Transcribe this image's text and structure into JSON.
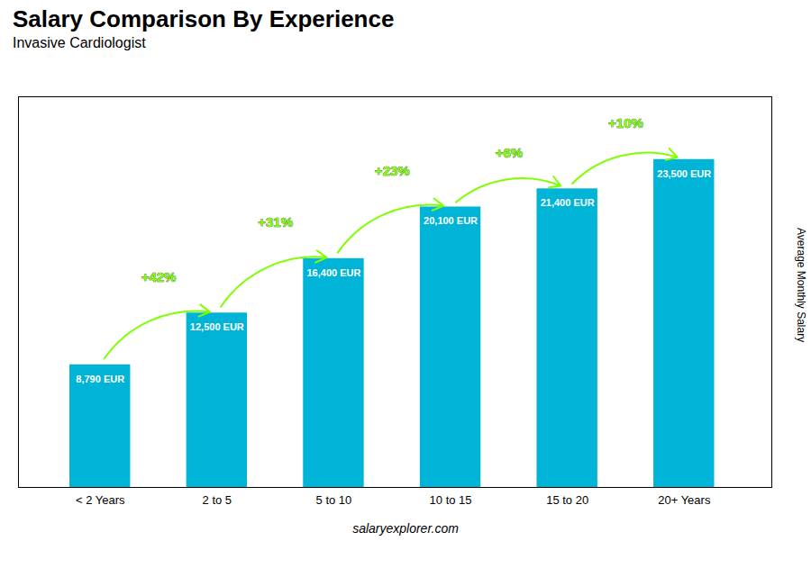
{
  "chart_data": {
    "type": "bar",
    "title": "Salary Comparison By Experience",
    "subtitle": "Invasive Cardiologist",
    "categories": [
      "< 2 Years",
      "2 to 5",
      "5 to 10",
      "10 to 15",
      "15 to 20",
      "20+ Years"
    ],
    "values": [
      8790,
      12500,
      16400,
      20100,
      21400,
      23500
    ],
    "value_labels": [
      "8,790 EUR",
      "12,500 EUR",
      "16,400 EUR",
      "20,100 EUR",
      "21,400 EUR",
      "23,500 EUR"
    ],
    "data_labels": true,
    "color": "#00b4d8",
    "ylabel": "Average Monthly Salary",
    "ylim": [
      0,
      28000
    ],
    "tick_labels": "x",
    "grid": false,
    "annotations": [
      {
        "text": "+42%",
        "color": "#7fff00"
      },
      {
        "text": "+31%",
        "color": "#7fff00"
      },
      {
        "text": "+23%",
        "color": "#7fff00"
      },
      {
        "text": "+6%",
        "color": "#7fff00"
      },
      {
        "text": "+10%",
        "color": "#7fff00"
      }
    ],
    "caption": "salaryexplorer.com"
  }
}
